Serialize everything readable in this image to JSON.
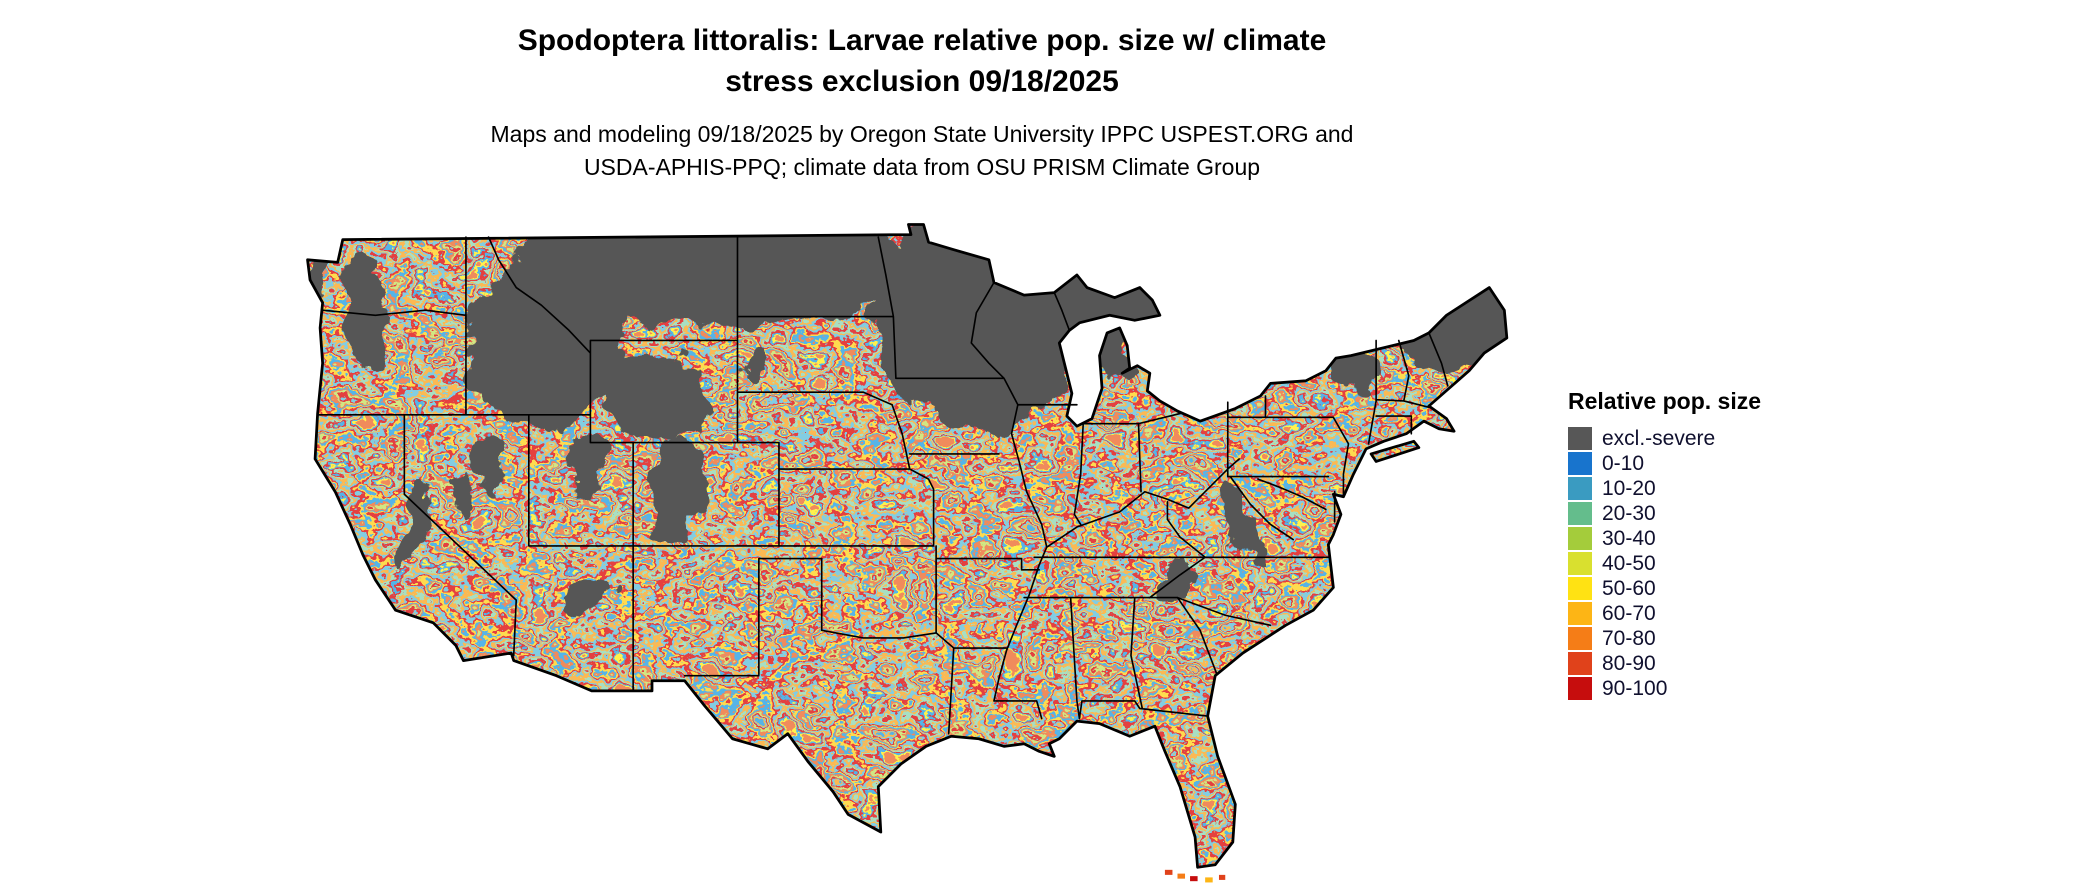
{
  "title": {
    "line1": "Spodoptera littoralis: Larvae relative pop. size w/ climate",
    "line2": "stress exclusion 09/18/2025"
  },
  "subtitle": {
    "line1": "Maps and modeling 09/18/2025 by Oregon State University IPPC USPEST.ORG and",
    "line2": "USDA-APHIS-PPQ; climate data from OSU PRISM Climate Group"
  },
  "legend": {
    "title": "Relative pop. size",
    "items": [
      {
        "label": "excl.-severe",
        "color": "#575757"
      },
      {
        "label": "0-10",
        "color": "#1874cd"
      },
      {
        "label": "10-20",
        "color": "#3a9bc1"
      },
      {
        "label": "20-30",
        "color": "#64bd8c"
      },
      {
        "label": "30-40",
        "color": "#a4cc3b"
      },
      {
        "label": "40-50",
        "color": "#d9e02f"
      },
      {
        "label": "50-60",
        "color": "#ffe213"
      },
      {
        "label": "60-70",
        "color": "#fdb515"
      },
      {
        "label": "70-80",
        "color": "#f57d17"
      },
      {
        "label": "80-90",
        "color": "#e0421b"
      },
      {
        "label": "90-100",
        "color": "#c60d0d"
      }
    ]
  },
  "map": {
    "region": "Continental United States",
    "kind": "raster choropleth of relative population size with climate stress exclusion",
    "exclusion_color": "#575757",
    "border_color": "#000000",
    "background_color": "#ffffff"
  }
}
